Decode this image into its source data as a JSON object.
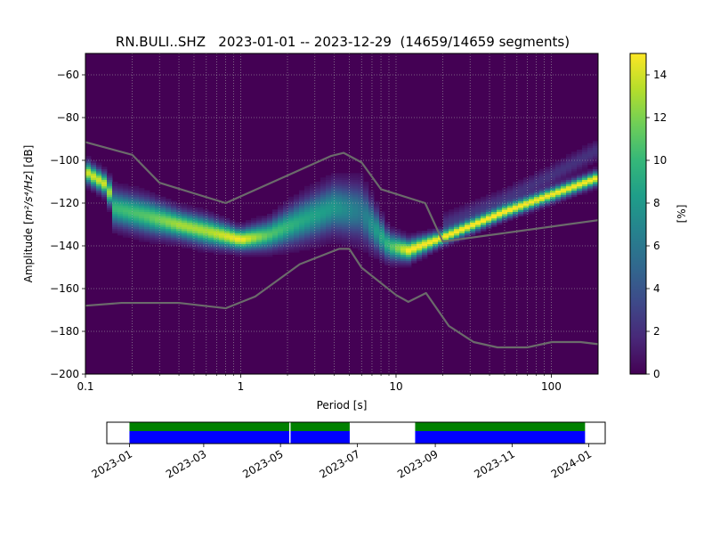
{
  "chart_data": [
    {
      "type": "heatmap",
      "title": "RN.BULI..SHZ   2023-01-01 -- 2023-12-29  (14659/14659 segments)",
      "xlabel": "Period [s]",
      "ylabel_main": "Amplitude [",
      "ylabel_unit": "m²/s⁴/Hz",
      "ylabel_end": "] [dB]",
      "xscale": "log",
      "xlim": [
        0.1,
        200
      ],
      "ylim": [
        -200,
        -50
      ],
      "x_ticks": [
        {
          "value": 0.1,
          "label": "0.1"
        },
        {
          "value": 1,
          "label": "1"
        },
        {
          "value": 10,
          "label": "10"
        },
        {
          "value": 100,
          "label": "100"
        }
      ],
      "y_ticks": [
        {
          "value": -60,
          "label": "−60"
        },
        {
          "value": -80,
          "label": "−80"
        },
        {
          "value": -100,
          "label": "−100"
        },
        {
          "value": -120,
          "label": "−120"
        },
        {
          "value": -140,
          "label": "−140"
        },
        {
          "value": -160,
          "label": "−160"
        },
        {
          "value": -180,
          "label": "−180"
        },
        {
          "value": -200,
          "label": "−200"
        }
      ],
      "grid": true,
      "background_color": "#440154",
      "colorbar": {
        "label": "[%]",
        "range": [
          0,
          15
        ],
        "ticks": [
          {
            "value": 0,
            "label": "0"
          },
          {
            "value": 2,
            "label": "2"
          },
          {
            "value": 4,
            "label": "4"
          },
          {
            "value": 6,
            "label": "6"
          },
          {
            "value": 8,
            "label": "8"
          },
          {
            "value": 10,
            "label": "10"
          },
          {
            "value": 12,
            "label": "12"
          },
          {
            "value": 14,
            "label": "14"
          }
        ],
        "colors": [
          "#440154",
          "#482878",
          "#3e4989",
          "#31688e",
          "#26828e",
          "#1f9e89",
          "#35b779",
          "#6ece58",
          "#b5de2b",
          "#fde725"
        ]
      },
      "ridge": [
        {
          "period": 0.1,
          "db": -105,
          "spread": 3,
          "pct": 14
        },
        {
          "period": 0.14,
          "db": -112,
          "spread": 3,
          "pct": 14
        },
        {
          "period": 0.15,
          "db": -122,
          "spread": 5,
          "pct": 10
        },
        {
          "period": 0.25,
          "db": -126,
          "spread": 5,
          "pct": 11
        },
        {
          "period": 0.4,
          "db": -130,
          "spread": 4,
          "pct": 13
        },
        {
          "period": 0.6,
          "db": -133,
          "spread": 4,
          "pct": 13
        },
        {
          "period": 1.0,
          "db": -137,
          "spread": 3,
          "pct": 15
        },
        {
          "period": 1.5,
          "db": -135,
          "spread": 4,
          "pct": 11
        },
        {
          "period": 2.5,
          "db": -128,
          "spread": 6,
          "pct": 9
        },
        {
          "period": 4.0,
          "db": -122,
          "spread": 7,
          "pct": 8
        },
        {
          "period": 6.0,
          "db": -124,
          "spread": 8,
          "pct": 6
        },
        {
          "period": 9.0,
          "db": -140,
          "spread": 4,
          "pct": 10
        },
        {
          "period": 12.0,
          "db": -142,
          "spread": 3,
          "pct": 15
        },
        {
          "period": 20.0,
          "db": -136,
          "spread": 2,
          "pct": 15
        },
        {
          "period": 50.0,
          "db": -124,
          "spread": 2,
          "pct": 15
        },
        {
          "period": 100.0,
          "db": -116,
          "spread": 2,
          "pct": 15
        },
        {
          "period": 200.0,
          "db": -108,
          "spread": 2,
          "pct": 15
        }
      ],
      "upper_faint": [
        {
          "period": 20.0,
          "db": -130
        },
        {
          "period": 50.0,
          "db": -118
        },
        {
          "period": 100.0,
          "db": -107
        },
        {
          "period": 200.0,
          "db": -95
        }
      ],
      "series": [
        {
          "line_color": "#6b6b6b",
          "points": [
            [
              0.1,
              -91.5
            ],
            [
              0.2,
              -97.4
            ],
            [
              0.3,
              -110.5
            ],
            [
              0.8,
              -120
            ],
            [
              3.8,
              -98
            ],
            [
              4.6,
              -96.5
            ],
            [
              6.0,
              -101
            ],
            [
              8.0,
              -113.5
            ],
            [
              15.4,
              -120
            ],
            [
              20.0,
              -138
            ],
            [
              200.0,
              -128
            ]
          ]
        },
        {
          "line_color": "#6b6b6b",
          "points": [
            [
              0.1,
              -168
            ],
            [
              0.17,
              -166.7
            ],
            [
              0.4,
              -166.7
            ],
            [
              0.8,
              -169.2
            ],
            [
              1.24,
              -163.7
            ],
            [
              2.4,
              -148.6
            ],
            [
              4.3,
              -141.4
            ],
            [
              5.0,
              -141.4
            ],
            [
              6.0,
              -150.2
            ],
            [
              10.0,
              -163
            ],
            [
              12.0,
              -166.2
            ],
            [
              15.6,
              -162.1
            ],
            [
              21.9,
              -177.5
            ],
            [
              31.6,
              -185
            ],
            [
              45.0,
              -187.5
            ],
            [
              70.0,
              -187.5
            ],
            [
              101.0,
              -185
            ],
            [
              154.0,
              -185
            ],
            [
              200.0,
              -186
            ]
          ]
        }
      ]
    },
    {
      "type": "table",
      "x_ticks": [
        {
          "date": "2023-01-01",
          "label": "2023-01"
        },
        {
          "date": "2023-03-01",
          "label": "2023-03"
        },
        {
          "date": "2023-05-01",
          "label": "2023-05"
        },
        {
          "date": "2023-07-01",
          "label": "2023-07"
        },
        {
          "date": "2023-09-01",
          "label": "2023-09"
        },
        {
          "date": "2023-11-01",
          "label": "2023-11"
        },
        {
          "date": "2024-01-01",
          "label": "2024-01"
        }
      ],
      "xlim": [
        "2022-12-14",
        "2024-01-14"
      ],
      "data_color": "#0000ff",
      "psd_color": "#008000",
      "available_ranges": [
        [
          "2023-01-01",
          "2023-05-08"
        ],
        [
          "2023-05-09",
          "2023-06-25"
        ],
        [
          "2023-08-16",
          "2023-12-29"
        ]
      ]
    }
  ]
}
